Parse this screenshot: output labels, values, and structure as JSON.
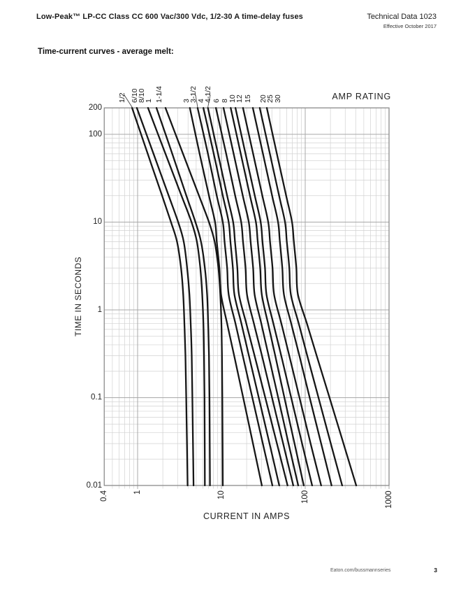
{
  "header": {
    "product_title": "Low-Peak™ LP-CC Class CC 600 Vac/300 Vdc, 1/2-30 A time-delay fuses",
    "doc_title": "Technical Data 1023",
    "effective_date": "Effective October 2017"
  },
  "section": {
    "heading": "Time-current curves - average melt:"
  },
  "footer": {
    "website": "Eaton.com/bussmannseries",
    "page_number": "3"
  },
  "chart_data": {
    "type": "line",
    "title": "AMP RATING",
    "xlabel": "CURRENT IN AMPS",
    "ylabel": "TIME IN SECONDS",
    "x_scale": "log",
    "y_scale": "log",
    "xlim": [
      0.4,
      1000
    ],
    "ylim": [
      0.01,
      200
    ],
    "grid": true,
    "colors": {
      "curve": "#161616",
      "grid_minor": "#d2d2d2",
      "grid_major": "#a8a8a8",
      "frame": "#8c8c8c",
      "leader": "#444444"
    },
    "x_ticks": [
      {
        "label": "0.4",
        "value": 0.4
      },
      {
        "label": "1",
        "value": 1
      },
      {
        "label": "10",
        "value": 10
      },
      {
        "label": "100",
        "value": 100
      },
      {
        "label": "1000",
        "value": 1000
      }
    ],
    "y_ticks": [
      {
        "label": "200",
        "value": 200
      },
      {
        "label": "100",
        "value": 100
      },
      {
        "label": "10",
        "value": 10
      },
      {
        "label": "1",
        "value": 1
      },
      {
        "label": "0.1",
        "value": 0.1
      },
      {
        "label": "0.01",
        "value": 0.01
      }
    ],
    "series": [
      {
        "name": "1/2",
        "label_x": 175,
        "leader": true,
        "points": [
          [
            0.86,
            200
          ],
          [
            1.32,
            60
          ],
          [
            1.96,
            20
          ],
          [
            2.5,
            10
          ],
          [
            2.95,
            6
          ],
          [
            3.3,
            3
          ],
          [
            3.5,
            1.5
          ],
          [
            3.62,
            0.7
          ],
          [
            3.72,
            0.3
          ],
          [
            3.8,
            0.1
          ],
          [
            3.88,
            0.03
          ],
          [
            3.95,
            0.01
          ]
        ]
      },
      {
        "name": "6/10",
        "label_x": 193,
        "leader": false,
        "points": [
          [
            0.98,
            200
          ],
          [
            1.55,
            60
          ],
          [
            2.35,
            20
          ],
          [
            3.05,
            10
          ],
          [
            3.55,
            6
          ],
          [
            3.9,
            3
          ],
          [
            4.15,
            1.5
          ],
          [
            4.3,
            0.7
          ],
          [
            4.42,
            0.3
          ],
          [
            4.5,
            0.1
          ],
          [
            4.58,
            0.03
          ],
          [
            4.65,
            0.01
          ]
        ]
      },
      {
        "name": "8/10",
        "label_x": 203,
        "leader": false,
        "points": [
          [
            1.33,
            200
          ],
          [
            2.15,
            60
          ],
          [
            3.34,
            20
          ],
          [
            4.4,
            10
          ],
          [
            5.1,
            6
          ],
          [
            5.6,
            3
          ],
          [
            5.9,
            1.5
          ],
          [
            6.1,
            0.7
          ],
          [
            6.2,
            0.3
          ],
          [
            6.28,
            0.1
          ],
          [
            6.32,
            0.03
          ],
          [
            6.35,
            0.01
          ]
        ]
      },
      {
        "name": "1",
        "label_x": 213,
        "leader": false,
        "points": [
          [
            1.68,
            200
          ],
          [
            2.59,
            60
          ],
          [
            3.82,
            20
          ],
          [
            4.9,
            10
          ],
          [
            5.7,
            6
          ],
          [
            6.35,
            3
          ],
          [
            6.75,
            1.5
          ],
          [
            6.95,
            0.7
          ],
          [
            7.1,
            0.3
          ],
          [
            7.2,
            0.1
          ],
          [
            7.26,
            0.03
          ],
          [
            7.3,
            0.01
          ]
        ]
      },
      {
        "name": "1-1/4",
        "label_x": 228,
        "leader": false,
        "points": [
          [
            2.15,
            200
          ],
          [
            3.48,
            60
          ],
          [
            5.4,
            20
          ],
          [
            7.1,
            10
          ],
          [
            8.3,
            6
          ],
          [
            9.2,
            3
          ],
          [
            9.7,
            1.5
          ],
          [
            10.0,
            0.7
          ],
          [
            10.15,
            0.3
          ],
          [
            10.25,
            0.1
          ],
          [
            10.33,
            0.03
          ],
          [
            10.4,
            0.01
          ]
        ]
      },
      {
        "name": "3",
        "label_x": 267,
        "leader": false,
        "points": [
          [
            4.2,
            200
          ],
          [
            5.5,
            60
          ],
          [
            7.1,
            20
          ],
          [
            8.4,
            10
          ],
          [
            8.8,
            6
          ],
          [
            9.45,
            3
          ],
          [
            9.9,
            1.5
          ],
          [
            11.7,
            0.7
          ],
          [
            14.2,
            0.3
          ],
          [
            18.2,
            0.1
          ],
          [
            23.8,
            0.03
          ],
          [
            30.4,
            0.01
          ]
        ]
      },
      {
        "name": "3-1/2",
        "label_x": 277,
        "leader": true,
        "points": [
          [
            5.2,
            200
          ],
          [
            6.9,
            60
          ],
          [
            8.8,
            20
          ],
          [
            10.4,
            10
          ],
          [
            10.9,
            6
          ],
          [
            11.7,
            3
          ],
          [
            12.2,
            1.5
          ],
          [
            14.7,
            0.7
          ],
          [
            18.0,
            0.3
          ],
          [
            23.4,
            0.1
          ],
          [
            31.2,
            0.03
          ],
          [
            40.6,
            0.01
          ]
        ]
      },
      {
        "name": "4",
        "label_x": 288,
        "leader": false,
        "points": [
          [
            6.1,
            200
          ],
          [
            8.1,
            60
          ],
          [
            10.4,
            20
          ],
          [
            12.2,
            10
          ],
          [
            12.8,
            6
          ],
          [
            13.7,
            3
          ],
          [
            14.3,
            1.5
          ],
          [
            17.3,
            0.7
          ],
          [
            21.3,
            0.3
          ],
          [
            27.9,
            0.1
          ],
          [
            37.5,
            0.03
          ],
          [
            49,
            0.01
          ]
        ]
      },
      {
        "name": "4-1/2",
        "label_x": 298,
        "leader": true,
        "points": [
          [
            6.9,
            200
          ],
          [
            9.1,
            60
          ],
          [
            11.7,
            20
          ],
          [
            13.8,
            10
          ],
          [
            14.5,
            6
          ],
          [
            15.5,
            3
          ],
          [
            16.2,
            1.5
          ],
          [
            19.8,
            0.7
          ],
          [
            24.9,
            0.3
          ],
          [
            33.4,
            0.1
          ],
          [
            46,
            0.03
          ],
          [
            61.6,
            0.01
          ]
        ]
      },
      {
        "name": "6",
        "label_x": 310,
        "leader": false,
        "points": [
          [
            8.6,
            200
          ],
          [
            11.4,
            60
          ],
          [
            14.6,
            20
          ],
          [
            17.2,
            10
          ],
          [
            18.1,
            6
          ],
          [
            19.4,
            3
          ],
          [
            20.2,
            1.5
          ],
          [
            24.4,
            0.7
          ],
          [
            30.5,
            0.3
          ],
          [
            40.2,
            0.1
          ],
          [
            54.5,
            0.03
          ],
          [
            72,
            0.01
          ]
        ]
      },
      {
        "name": "8",
        "label_x": 322,
        "leader": false,
        "points": [
          [
            10.6,
            200
          ],
          [
            14.0,
            60
          ],
          [
            18.0,
            20
          ],
          [
            21.2,
            10
          ],
          [
            22.3,
            6
          ],
          [
            23.9,
            3
          ],
          [
            24.9,
            1.5
          ],
          [
            29.9,
            0.7
          ],
          [
            36.6,
            0.3
          ],
          [
            47.6,
            0.1
          ],
          [
            63.2,
            0.03
          ],
          [
            82.5,
            0.01
          ]
        ]
      },
      {
        "name": "10",
        "label_x": 333,
        "leader": false,
        "points": [
          [
            12.9,
            200
          ],
          [
            17.0,
            60
          ],
          [
            21.9,
            20
          ],
          [
            25.8,
            10
          ],
          [
            27.1,
            6
          ],
          [
            29.0,
            3
          ],
          [
            30.3,
            1.5
          ],
          [
            36.0,
            0.7
          ],
          [
            43.9,
            0.3
          ],
          [
            56.4,
            0.1
          ],
          [
            74.5,
            0.03
          ],
          [
            96,
            0.01
          ]
        ]
      },
      {
        "name": "12",
        "label_x": 343,
        "leader": false,
        "points": [
          [
            14.7,
            200
          ],
          [
            19.4,
            60
          ],
          [
            25.0,
            20
          ],
          [
            29.4,
            10
          ],
          [
            30.9,
            6
          ],
          [
            33.1,
            3
          ],
          [
            34.5,
            1.5
          ],
          [
            41.7,
            0.7
          ],
          [
            51.8,
            0.3
          ],
          [
            68,
            0.1
          ],
          [
            91.8,
            0.03
          ],
          [
            121,
            0.01
          ]
        ]
      },
      {
        "name": "15",
        "label_x": 355,
        "leader": false,
        "points": [
          [
            18.1,
            200
          ],
          [
            23.9,
            60
          ],
          [
            30.8,
            20
          ],
          [
            36.2,
            10
          ],
          [
            38.0,
            6
          ],
          [
            40.7,
            3
          ],
          [
            42.5,
            1.5
          ],
          [
            51.9,
            0.7
          ],
          [
            64.6,
            0.3
          ],
          [
            85.4,
            0.1
          ],
          [
            116,
            0.03
          ],
          [
            155,
            0.01
          ]
        ]
      },
      {
        "name": "20",
        "label_x": 377,
        "leader": false,
        "points": [
          [
            23.7,
            200
          ],
          [
            31.3,
            60
          ],
          [
            40.3,
            20
          ],
          [
            47.4,
            10
          ],
          [
            49.8,
            6
          ],
          [
            53.3,
            3
          ],
          [
            55.7,
            1.5
          ],
          [
            68,
            0.7
          ],
          [
            85.2,
            0.3
          ],
          [
            113,
            0.1
          ],
          [
            155,
            0.03
          ],
          [
            206,
            0.01
          ]
        ]
      },
      {
        "name": "25",
        "label_x": 387,
        "leader": false,
        "points": [
          [
            28.7,
            200
          ],
          [
            37.9,
            60
          ],
          [
            48.8,
            20
          ],
          [
            57.4,
            10
          ],
          [
            60.3,
            6
          ],
          [
            64.6,
            3
          ],
          [
            67.4,
            1.5
          ],
          [
            83.6,
            0.7
          ],
          [
            105.8,
            0.3
          ],
          [
            144,
            0.1
          ],
          [
            202,
            0.03
          ],
          [
            276,
            0.01
          ]
        ]
      },
      {
        "name": "30",
        "label_x": 398,
        "leader": false,
        "points": [
          [
            34.8,
            200
          ],
          [
            45.9,
            60
          ],
          [
            59.2,
            20
          ],
          [
            69.6,
            10
          ],
          [
            73.1,
            6
          ],
          [
            78.3,
            3
          ],
          [
            81.8,
            1.5
          ],
          [
            104.7,
            0.7
          ],
          [
            137,
            0.3
          ],
          [
            195,
            0.1
          ],
          [
            286,
            0.03
          ],
          [
            406,
            0.01
          ]
        ]
      }
    ]
  }
}
